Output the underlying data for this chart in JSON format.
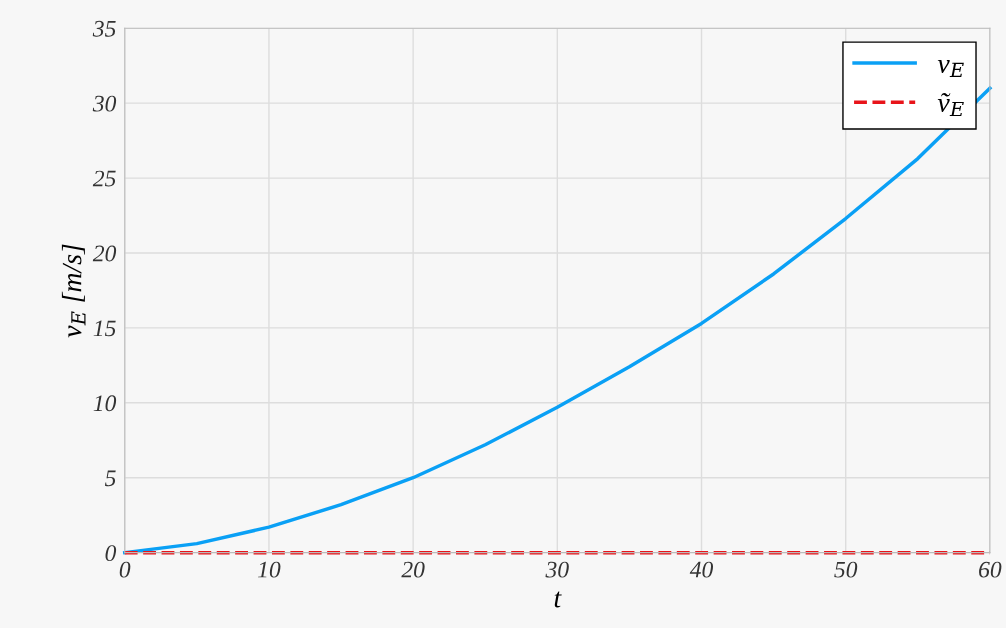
{
  "chart_data": {
    "type": "line",
    "xlabel": "t",
    "ylabel": "v$_{E}$ [m/s]",
    "x": [
      0,
      5,
      10,
      15,
      20,
      25,
      30,
      35,
      40,
      45,
      50,
      55,
      60
    ],
    "series": [
      {
        "name": "v$_{E}$",
        "color": "#0aa0f5",
        "line_style": "solid",
        "values": [
          0,
          0.6,
          1.7,
          3.2,
          5.0,
          7.2,
          9.7,
          12.4,
          15.3,
          18.6,
          22.3,
          26.3,
          31.0
        ]
      },
      {
        "name": "ṽ$_{E}$",
        "color": "#e8141a",
        "line_style": "dashed",
        "values": [
          0,
          0,
          0,
          0,
          0,
          0,
          0,
          0,
          0,
          0,
          0,
          0,
          0
        ]
      }
    ],
    "xlim": [
      0,
      60
    ],
    "ylim": [
      0,
      35
    ],
    "xticks": [
      0,
      10,
      20,
      30,
      40,
      50,
      60
    ],
    "yticks": [
      0,
      5,
      10,
      15,
      20,
      25,
      30,
      35
    ],
    "grid": true,
    "legend": "top right"
  }
}
